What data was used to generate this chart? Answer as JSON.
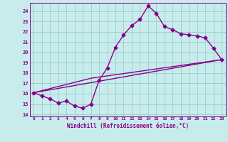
{
  "xlabel": "Windchill (Refroidissement éolien,°C)",
  "bg_color": "#c8ecec",
  "line_color": "#880088",
  "grid_color": "#99cccc",
  "xlim": [
    -0.5,
    23.5
  ],
  "ylim": [
    13.8,
    24.8
  ],
  "yticks": [
    14,
    15,
    16,
    17,
    18,
    19,
    20,
    21,
    22,
    23,
    24
  ],
  "xticks": [
    0,
    1,
    2,
    3,
    4,
    5,
    6,
    7,
    8,
    9,
    10,
    11,
    12,
    13,
    14,
    15,
    16,
    17,
    18,
    19,
    20,
    21,
    22,
    23
  ],
  "curve1_x": [
    0,
    1,
    2,
    3,
    4,
    5,
    6,
    7,
    8,
    9,
    10,
    11,
    12,
    13,
    14,
    15,
    16,
    17,
    18,
    19,
    20,
    21,
    22,
    23
  ],
  "curve1_y": [
    16.1,
    15.8,
    15.5,
    15.1,
    15.3,
    14.8,
    14.6,
    15.0,
    17.3,
    18.5,
    20.5,
    21.7,
    22.6,
    23.2,
    24.5,
    23.8,
    22.5,
    22.2,
    21.8,
    21.7,
    21.6,
    21.4,
    20.4,
    19.3
  ],
  "line2_x": [
    0,
    23
  ],
  "line2_y": [
    16.1,
    19.3
  ],
  "line3_x": [
    0,
    7,
    23
  ],
  "line3_y": [
    16.1,
    17.5,
    19.3
  ],
  "markersize": 2.5,
  "linewidth": 1.0
}
